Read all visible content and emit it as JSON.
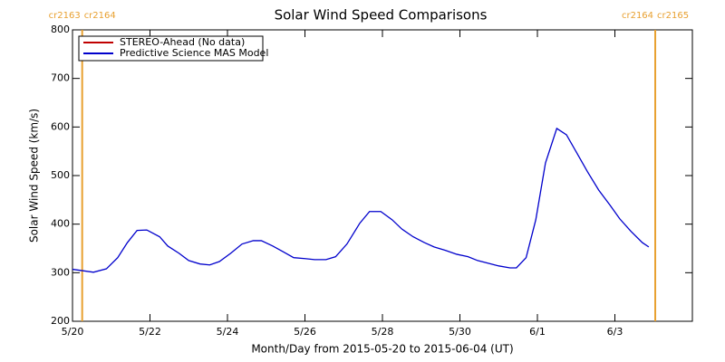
{
  "chart_data": {
    "type": "line",
    "title": "Solar Wind Speed Comparisons",
    "xlabel": "Month/Day from 2015-05-20 to 2015-06-04 (UT)",
    "ylabel": "Solar Wind Speed (km/s)",
    "xlim": [
      "2015-05-20T00:00",
      "2015-06-05T00:00"
    ],
    "xticks": [
      {
        "value": "2015-05-20T00:00",
        "label": "5/20"
      },
      {
        "value": "2015-05-22T00:00",
        "label": "5/22"
      },
      {
        "value": "2015-05-24T00:00",
        "label": "5/24"
      },
      {
        "value": "2015-05-26T00:00",
        "label": "5/26"
      },
      {
        "value": "2015-05-28T00:00",
        "label": "5/28"
      },
      {
        "value": "2015-05-30T00:00",
        "label": "5/30"
      },
      {
        "value": "2015-06-01T00:00",
        "label": "6/1"
      },
      {
        "value": "2015-06-03T00:00",
        "label": "6/3"
      }
    ],
    "ylim": [
      200,
      800
    ],
    "yticks": [
      200,
      300,
      400,
      500,
      600,
      700,
      800
    ],
    "legend": "upper left",
    "markers": [
      {
        "x": "2015-05-20T06:00",
        "labels": [
          "cr2163",
          "cr2164"
        ],
        "color": "#e8a030"
      },
      {
        "x": "2015-06-04T01:00",
        "labels": [
          "cr2164",
          "cr2165"
        ],
        "color": "#e8a030"
      }
    ],
    "x": [
      "2015-05-20T00:00",
      "2015-05-20T13:00",
      "2015-05-20T21:00",
      "2015-05-21T04:00",
      "2015-05-21T10:00",
      "2015-05-21T16:00",
      "2015-05-21T22:00",
      "2015-05-22T06:00",
      "2015-05-22T11:00",
      "2015-05-22T18:00",
      "2015-05-23T00:00",
      "2015-05-23T07:00",
      "2015-05-23T13:00",
      "2015-05-23T19:00",
      "2015-05-24T02:00",
      "2015-05-24T09:00",
      "2015-05-24T16:00",
      "2015-05-24T21:00",
      "2015-05-25T04:00",
      "2015-05-25T10:00",
      "2015-05-25T17:00",
      "2015-05-26T00:00",
      "2015-05-26T06:00",
      "2015-05-26T13:00",
      "2015-05-26T19:00",
      "2015-05-27T02:00",
      "2015-05-27T10:00",
      "2015-05-27T16:00",
      "2015-05-27T23:00",
      "2015-05-28T06:00",
      "2015-05-28T12:00",
      "2015-05-28T19:00",
      "2015-05-29T02:00",
      "2015-05-29T08:00",
      "2015-05-29T15:00",
      "2015-05-29T22:00",
      "2015-05-30T05:00",
      "2015-05-30T11:00",
      "2015-05-30T17:00",
      "2015-05-31T00:00",
      "2015-05-31T07:00",
      "2015-05-31T11:00",
      "2015-05-31T17:00",
      "2015-05-31T23:00",
      "2015-06-01T05:00",
      "2015-06-01T12:00",
      "2015-06-01T18:00",
      "2015-06-02T00:00",
      "2015-06-02T07:00",
      "2015-06-02T14:00",
      "2015-06-02T21:00",
      "2015-06-03T03:00",
      "2015-06-03T10:00",
      "2015-06-03T17:00",
      "2015-06-03T21:00"
    ],
    "series": [
      {
        "name": "STEREO-Ahead (No data)",
        "color": "#c00000",
        "values": null
      },
      {
        "name": "Predictive Science MAS Model",
        "color": "#0000cc",
        "values": [
          307,
          301,
          308,
          331,
          362,
          387,
          388,
          374,
          355,
          340,
          325,
          318,
          316,
          323,
          340,
          359,
          366,
          366,
          355,
          344,
          331,
          329,
          327,
          327,
          333,
          359,
          402,
          426,
          426,
          409,
          390,
          374,
          362,
          353,
          346,
          338,
          333,
          325,
          320,
          314,
          310,
          310,
          331,
          409,
          526,
          597,
          584,
          549,
          508,
          470,
          439,
          411,
          385,
          362,
          353
        ]
      }
    ]
  }
}
